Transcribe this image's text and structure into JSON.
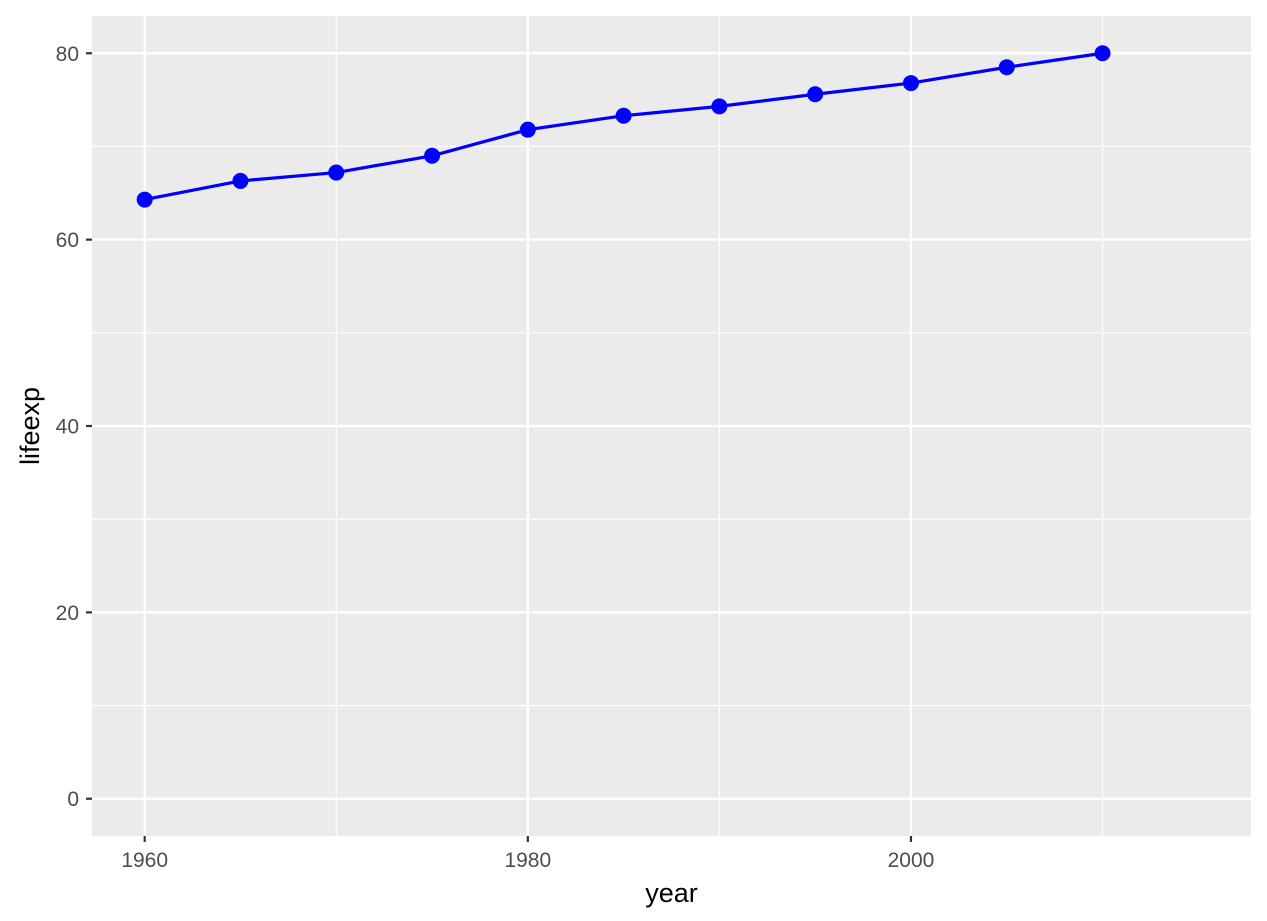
{
  "chart_data": {
    "type": "line",
    "title": "",
    "xlabel": "year",
    "ylabel": "lifeexp",
    "x": [
      1960,
      1965,
      1970,
      1975,
      1980,
      1985,
      1990,
      1995,
      2000,
      2005,
      2010
    ],
    "series": [
      {
        "name": "lifeexp",
        "color": "#0000FF",
        "values": [
          64.3,
          66.3,
          67.2,
          69.0,
          71.8,
          73.3,
          74.3,
          75.6,
          76.8,
          78.5,
          80.0
        ]
      }
    ],
    "xlim": [
      1957.25,
      2017.75
    ],
    "ylim": [
      -4.0,
      84.0
    ],
    "x_major_ticks": [
      1960,
      1980,
      2000
    ],
    "x_minor_ticks": [
      1970,
      1990,
      2010
    ],
    "y_major_ticks": [
      0,
      20,
      40,
      60,
      80
    ],
    "y_minor_ticks": [
      10,
      30,
      50,
      70
    ],
    "x_tick_labels": [
      "1960",
      "1980",
      "2000"
    ],
    "y_tick_labels": [
      "0",
      "20",
      "40",
      "60",
      "80"
    ],
    "grid": true,
    "legend": "none",
    "panel_color": "#EBEBEB",
    "grid_color": "#FFFFFF"
  }
}
